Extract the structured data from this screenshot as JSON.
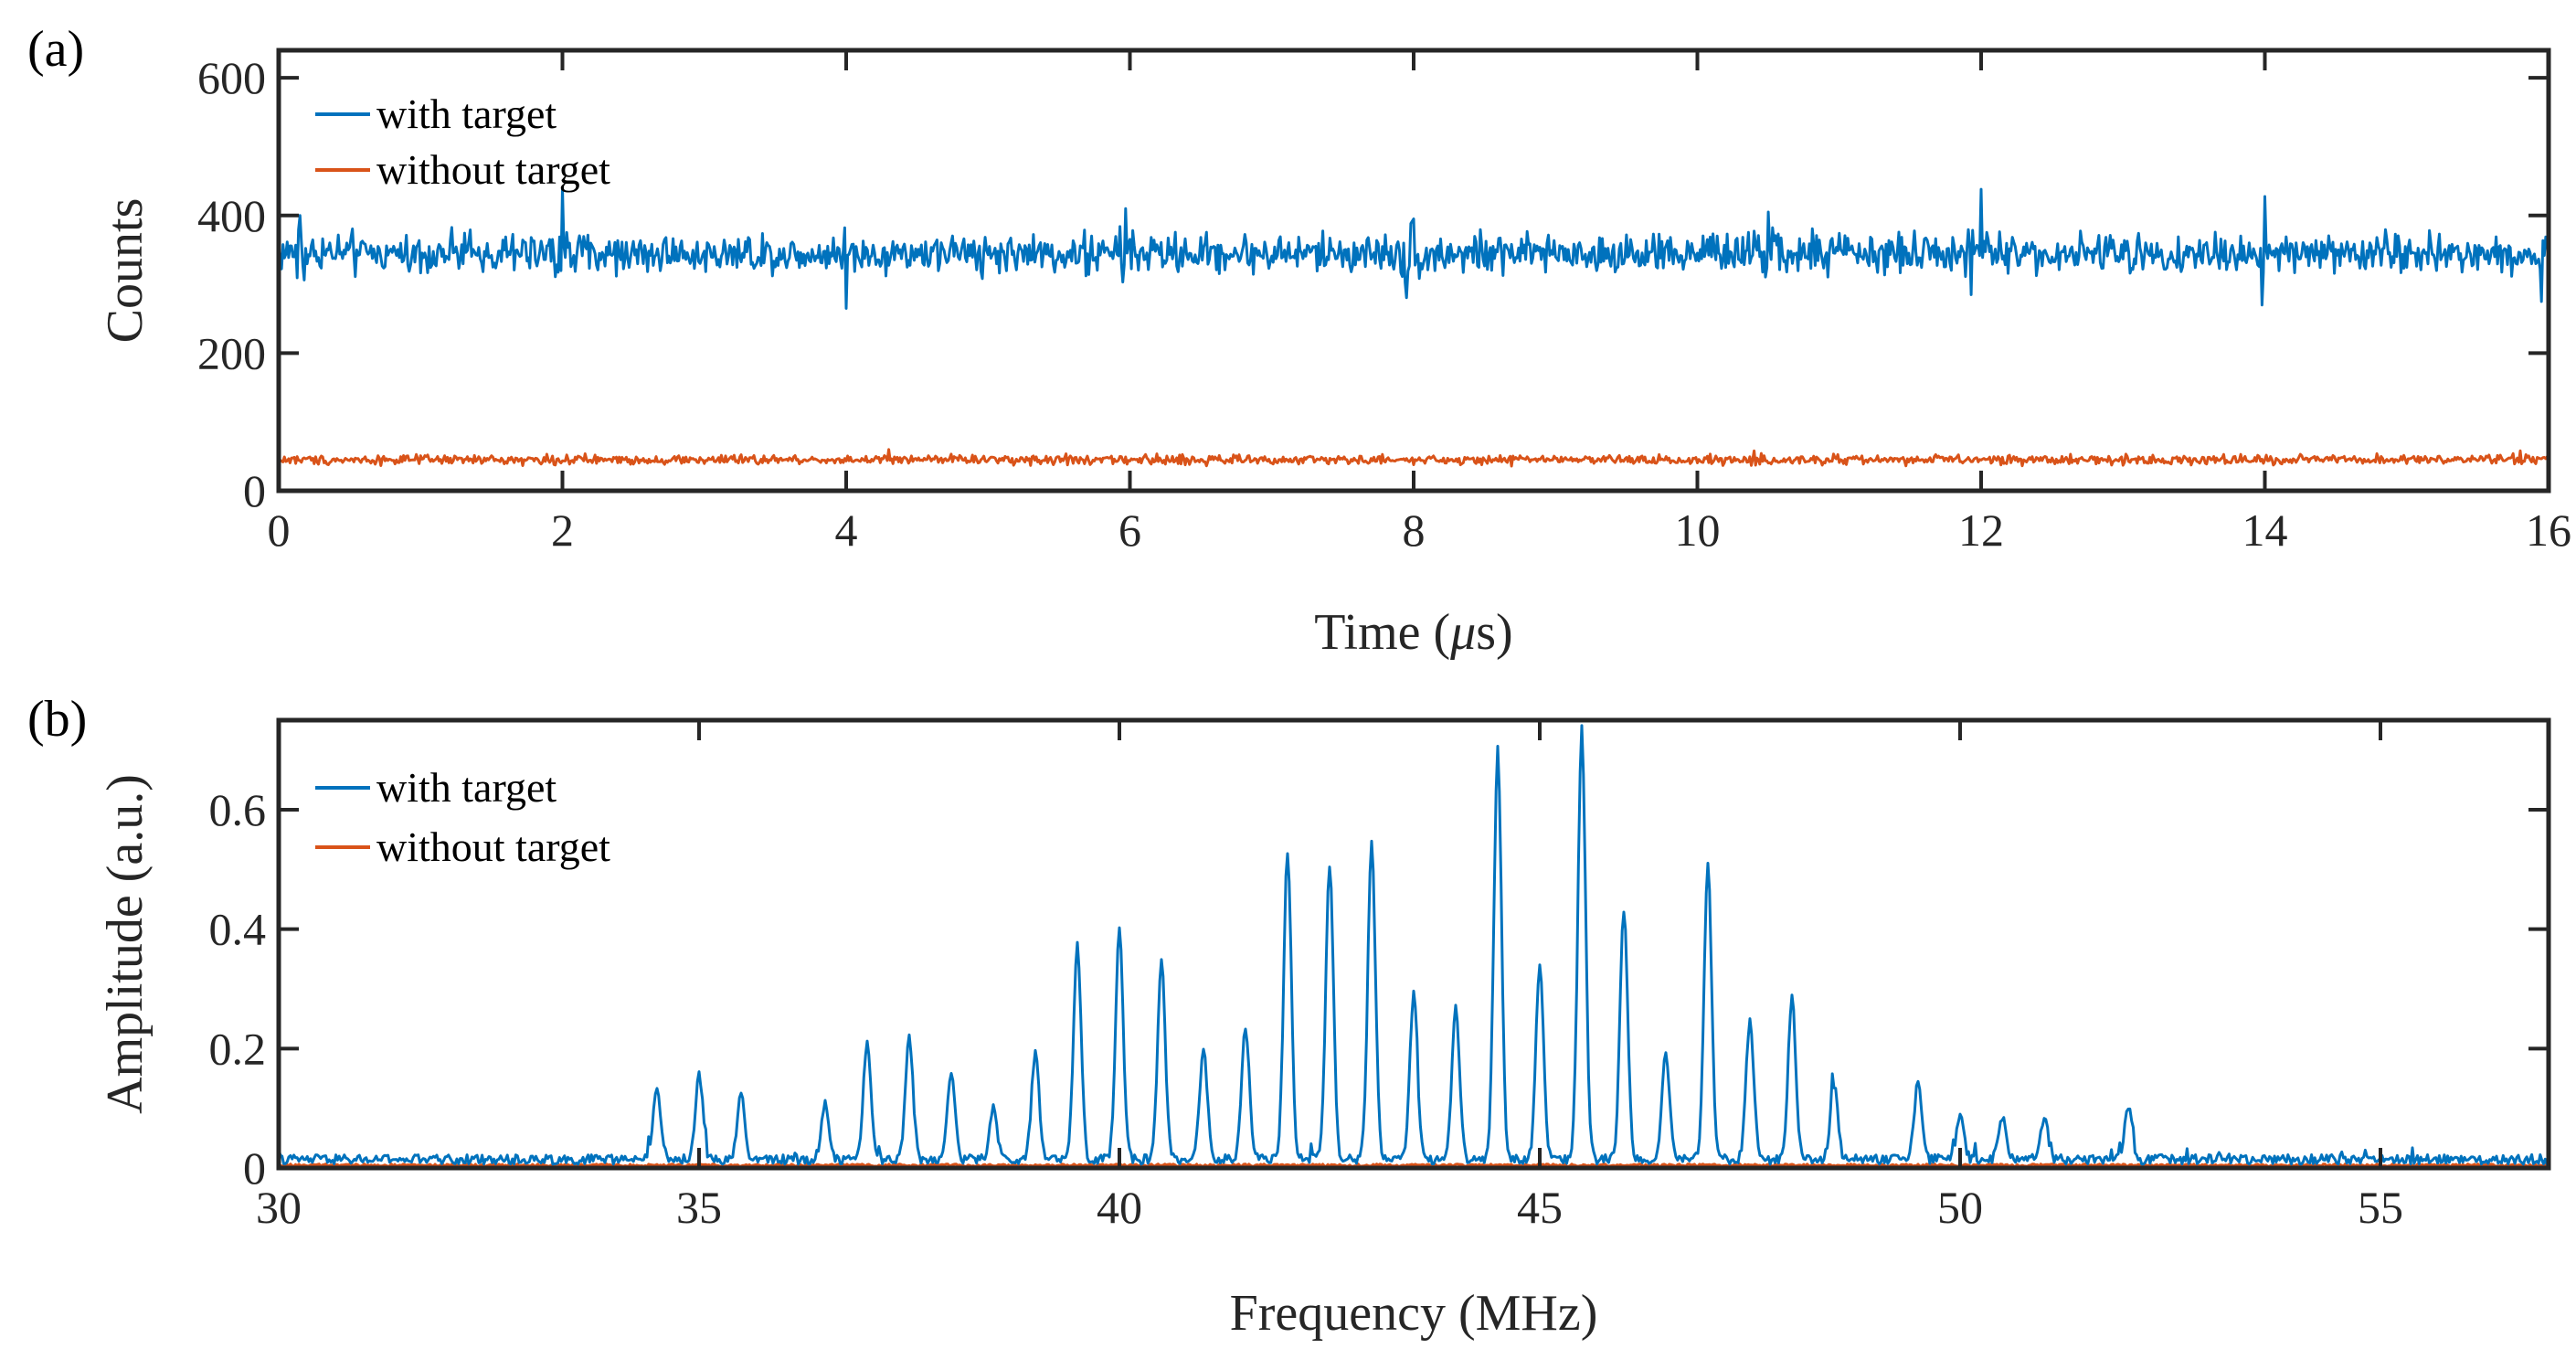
{
  "chart_data": [
    {
      "panel_label": "(a)",
      "type": "line",
      "xlabel_prefix": "Time (",
      "xlabel_unit_symbol": "μ",
      "xlabel_suffix": "s)",
      "ylabel": "Counts",
      "xlim": [
        0,
        16
      ],
      "ylim": [
        0,
        640
      ],
      "xticks": [
        0,
        2,
        4,
        6,
        8,
        10,
        12,
        14,
        16
      ],
      "yticks": [
        0,
        200,
        400,
        600
      ],
      "legend_location": "top-left",
      "series": [
        {
          "name": "with target",
          "color": "#0072BD",
          "kind": "noise",
          "mean": 345,
          "noise_amplitude": 25,
          "samples": 1600,
          "spikes": [
            {
              "x": 0.15,
              "y": 400
            },
            {
              "x": 2.0,
              "y": 440
            },
            {
              "x": 4.0,
              "y": 265
            },
            {
              "x": 5.97,
              "y": 410
            },
            {
              "x": 7.95,
              "y": 262
            },
            {
              "x": 8.0,
              "y": 395
            },
            {
              "x": 10.5,
              "y": 405
            },
            {
              "x": 12.0,
              "y": 438
            },
            {
              "x": 11.93,
              "y": 285
            },
            {
              "x": 14.0,
              "y": 400
            },
            {
              "x": 13.98,
              "y": 270
            },
            {
              "x": 15.95,
              "y": 275
            }
          ]
        },
        {
          "name": "without target",
          "color": "#D95319",
          "kind": "noise",
          "mean": 45,
          "noise_amplitude": 6,
          "samples": 1600,
          "spikes": [
            {
              "x": 4.3,
              "y": 60
            },
            {
              "x": 10.4,
              "y": 58
            },
            {
              "x": 15.8,
              "y": 58
            }
          ]
        }
      ]
    },
    {
      "panel_label": "(b)",
      "type": "line",
      "xlabel": "Frequency (MHz)",
      "ylabel": "Amplitude (a.u.)",
      "xlim": [
        30,
        57
      ],
      "ylim": [
        0,
        0.75
      ],
      "xticks": [
        30,
        35,
        40,
        45,
        50,
        55
      ],
      "yticks": [
        0,
        0.2,
        0.4,
        0.6
      ],
      "legend_location": "top-left",
      "series": [
        {
          "name": "with target",
          "color": "#0072BD",
          "kind": "spectrum",
          "baseline": 0.012,
          "noise_amplitude": 0.008,
          "peaks": [
            {
              "x": 34.5,
              "y": 0.12
            },
            {
              "x": 35.0,
              "y": 0.14
            },
            {
              "x": 35.5,
              "y": 0.105
            },
            {
              "x": 36.5,
              "y": 0.095
            },
            {
              "x": 37.0,
              "y": 0.2
            },
            {
              "x": 37.5,
              "y": 0.205
            },
            {
              "x": 38.0,
              "y": 0.145
            },
            {
              "x": 38.5,
              "y": 0.085
            },
            {
              "x": 39.0,
              "y": 0.175
            },
            {
              "x": 39.5,
              "y": 0.35
            },
            {
              "x": 40.0,
              "y": 0.39
            },
            {
              "x": 40.5,
              "y": 0.33
            },
            {
              "x": 41.0,
              "y": 0.185
            },
            {
              "x": 41.5,
              "y": 0.22
            },
            {
              "x": 42.0,
              "y": 0.52
            },
            {
              "x": 42.5,
              "y": 0.495
            },
            {
              "x": 43.0,
              "y": 0.525
            },
            {
              "x": 43.5,
              "y": 0.275
            },
            {
              "x": 44.0,
              "y": 0.255
            },
            {
              "x": 44.5,
              "y": 0.685
            },
            {
              "x": 45.0,
              "y": 0.325
            },
            {
              "x": 45.5,
              "y": 0.72
            },
            {
              "x": 46.0,
              "y": 0.42
            },
            {
              "x": 46.5,
              "y": 0.18
            },
            {
              "x": 47.0,
              "y": 0.49
            },
            {
              "x": 47.5,
              "y": 0.235
            },
            {
              "x": 48.0,
              "y": 0.27
            },
            {
              "x": 48.5,
              "y": 0.125
            },
            {
              "x": 49.5,
              "y": 0.13
            },
            {
              "x": 50.0,
              "y": 0.07
            },
            {
              "x": 50.5,
              "y": 0.07
            },
            {
              "x": 51.0,
              "y": 0.07
            },
            {
              "x": 52.0,
              "y": 0.09
            }
          ]
        },
        {
          "name": "without target",
          "color": "#D95319",
          "kind": "spectrum",
          "baseline": 0.004,
          "noise_amplitude": 0.002,
          "peaks": []
        }
      ]
    }
  ]
}
